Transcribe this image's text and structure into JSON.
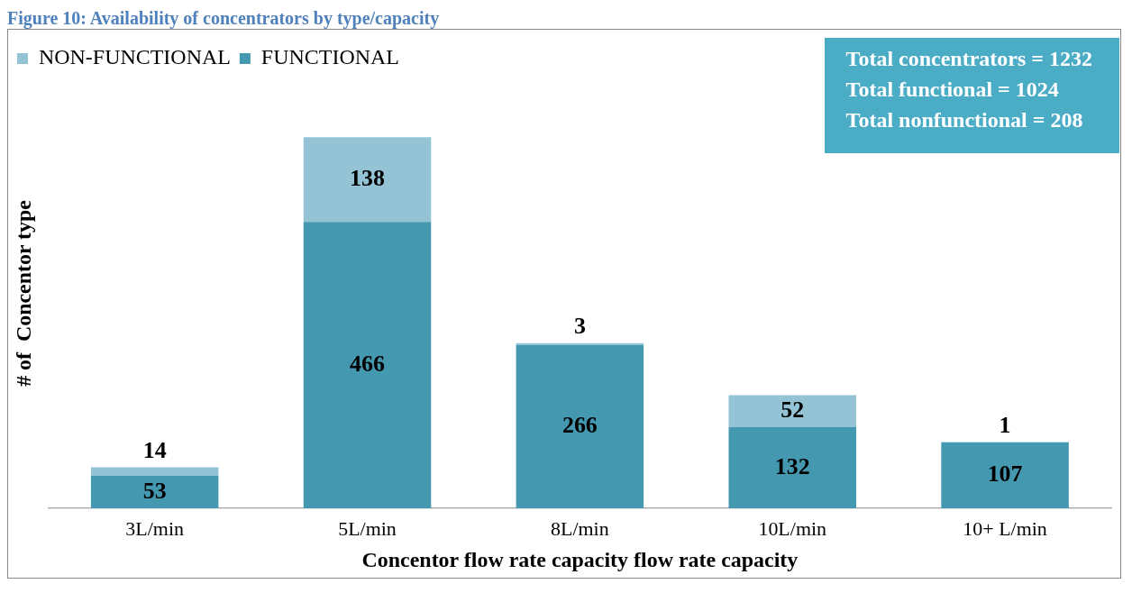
{
  "chart_data": {
    "type": "bar",
    "title": "Figure 10: Availability of concentrators by type/capacity",
    "xlabel": "Concentor flow rate capacity flow rate capacity",
    "ylabel": "# of  Concentor type",
    "categories": [
      "3L/min",
      "5L/min",
      "8L/min",
      "10L/min",
      "10+ L/min"
    ],
    "stacked": true,
    "data_labels": true,
    "legend": "top left",
    "grid": false,
    "series": [
      {
        "name": "FUNCTIONAL",
        "color": "#4499b0",
        "values": [
          53,
          466,
          266,
          132,
          107
        ]
      },
      {
        "name": "NON-FUNCTIONAL",
        "color": "#93c3d4",
        "values": [
          14,
          138,
          3,
          52,
          1
        ]
      }
    ],
    "annotations": [
      "Total  concentrators = 1232",
      "Total functional = 1024",
      "Total nonfunctional = 208"
    ]
  }
}
